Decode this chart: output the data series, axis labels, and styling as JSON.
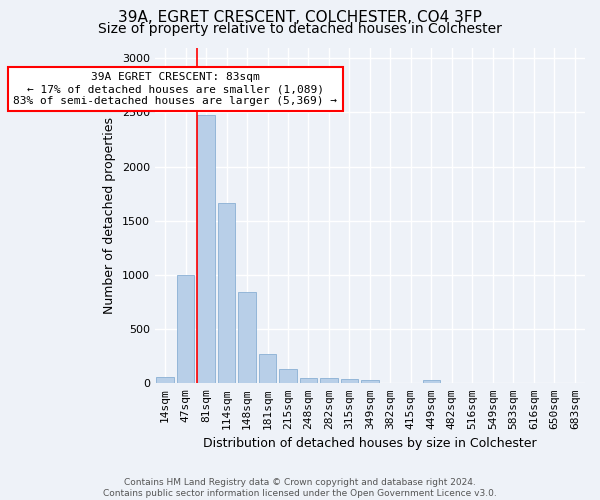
{
  "title1": "39A, EGRET CRESCENT, COLCHESTER, CO4 3FP",
  "title2": "Size of property relative to detached houses in Colchester",
  "xlabel": "Distribution of detached houses by size in Colchester",
  "ylabel": "Number of detached properties",
  "categories": [
    "14sqm",
    "47sqm",
    "81sqm",
    "114sqm",
    "148sqm",
    "181sqm",
    "215sqm",
    "248sqm",
    "282sqm",
    "315sqm",
    "349sqm",
    "382sqm",
    "415sqm",
    "449sqm",
    "482sqm",
    "516sqm",
    "549sqm",
    "583sqm",
    "616sqm",
    "650sqm",
    "683sqm"
  ],
  "values": [
    55,
    1000,
    2480,
    1660,
    840,
    270,
    130,
    50,
    50,
    40,
    30,
    0,
    0,
    30,
    0,
    0,
    0,
    0,
    0,
    0,
    0
  ],
  "bar_color": "#b8cfe8",
  "bar_edge_color": "#8ab0d4",
  "annotation_text": "39A EGRET CRESCENT: 83sqm\n← 17% of detached houses are smaller (1,089)\n83% of semi-detached houses are larger (5,369) →",
  "annotation_box_color": "white",
  "annotation_box_edge_color": "red",
  "vline_bar_idx": 2,
  "ylim": [
    0,
    3100
  ],
  "yticks": [
    0,
    500,
    1000,
    1500,
    2000,
    2500,
    3000
  ],
  "footnote": "Contains HM Land Registry data © Crown copyright and database right 2024.\nContains public sector information licensed under the Open Government Licence v3.0.",
  "bg_color": "#eef2f8",
  "plot_bg_color": "#eef2f8",
  "grid_color": "white",
  "title1_fontsize": 11,
  "title2_fontsize": 10,
  "ylabel_fontsize": 9,
  "xlabel_fontsize": 9,
  "tick_fontsize": 8,
  "annot_fontsize": 8,
  "footnote_fontsize": 6.5
}
